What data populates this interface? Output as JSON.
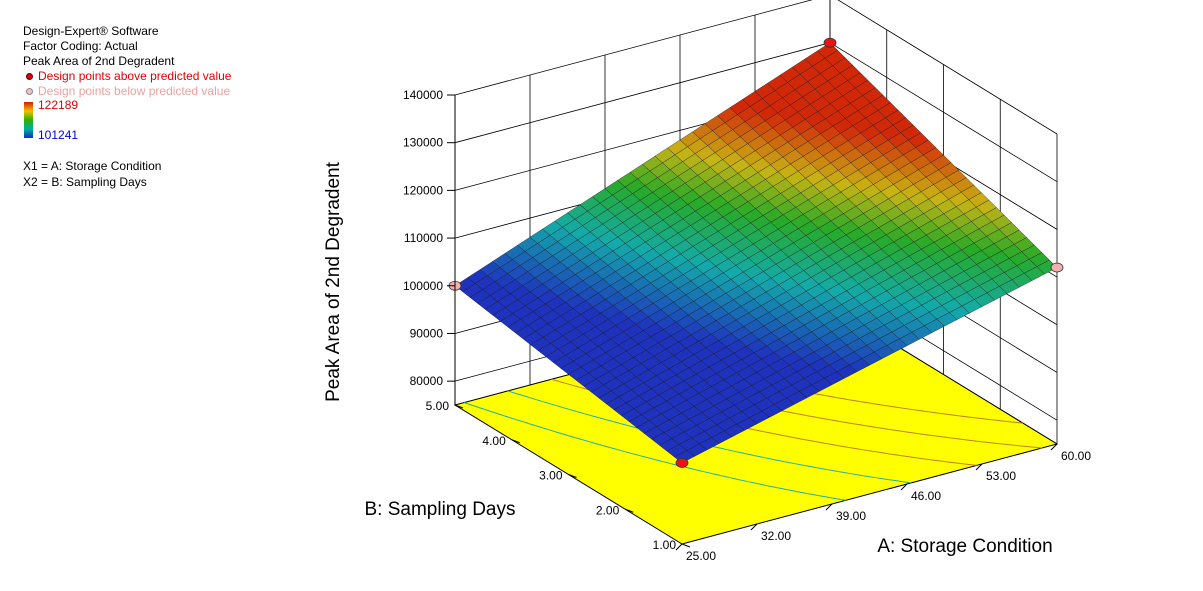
{
  "legend": {
    "software": "Design-Expert® Software",
    "coding": "Factor Coding: Actual",
    "response": "Peak Area of 2nd Degradent",
    "above_label": "Design points above predicted value",
    "below_label": "Design points below predicted value",
    "grad_max": "122189",
    "grad_min": "101241",
    "x1": "X1 = A: Storage Condition",
    "x2": "X2 = B: Sampling Days"
  },
  "colors": {
    "above_point": "#ee1111",
    "below_point": "#f4b0b0",
    "floor": "#ffff00",
    "grid": "#000000"
  },
  "chart_data": {
    "type": "surface3d",
    "title": "",
    "xlabel": "A: Storage Condition",
    "ylabel": "B: Sampling Days",
    "zlabel": "Peak Area of 2nd Degradent",
    "x_ticks": [
      "25.00",
      "32.00",
      "39.00",
      "46.00",
      "53.00",
      "60.00"
    ],
    "y_ticks": [
      "1.00",
      "2.00",
      "3.00",
      "4.00",
      "5.00"
    ],
    "z_ticks": [
      "80000",
      "90000",
      "100000",
      "110000",
      "120000",
      "130000",
      "140000"
    ],
    "xlim": [
      25,
      60
    ],
    "ylim": [
      1,
      5
    ],
    "zlim": [
      75000,
      140000
    ],
    "surface_corners": [
      {
        "x": 25,
        "y": 1,
        "z": 92000
      },
      {
        "x": 60,
        "y": 1,
        "z": 112000
      },
      {
        "x": 25,
        "y": 5,
        "z": 100000
      },
      {
        "x": 60,
        "y": 5,
        "z": 130000
      }
    ],
    "design_points": [
      {
        "x": 25,
        "y": 1,
        "z": 92000,
        "position": "above"
      },
      {
        "x": 60,
        "y": 5,
        "z": 130000,
        "position": "above"
      },
      {
        "x": 25,
        "y": 5,
        "z": 100000,
        "position": "below"
      },
      {
        "x": 60,
        "y": 1,
        "z": 112000,
        "position": "below"
      }
    ],
    "color_range": [
      101241,
      122189
    ],
    "grid": true
  }
}
